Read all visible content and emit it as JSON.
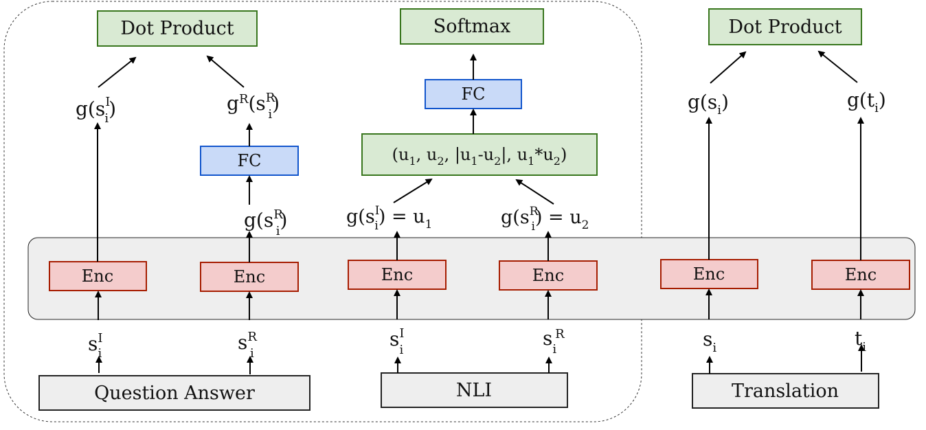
{
  "colors": {
    "green_fill": "#d9ead3",
    "green_stroke": "#38761d",
    "blue_fill": "#c9daf8",
    "blue_stroke": "#1155cc",
    "red_fill": "#f4cccc",
    "red_stroke": "#a61c00",
    "gray_fill": "#eeeeee",
    "gray_stroke": "#222222",
    "arrow": "#000000"
  },
  "boxes": {
    "dot_product_left": "Dot Product",
    "softmax": "Softmax",
    "dot_product_right": "Dot Product",
    "fc_qa": "FC",
    "fc_nli": "FC",
    "combine": {
      "t1": "(u",
      "s1": "1",
      "t2": ", u",
      "s2": "2",
      "t3": ", |u",
      "s3": "1",
      "t4": "-u",
      "s4": "2",
      "t5": "|, u",
      "s5": "1",
      "t6": "*u",
      "s6": "2",
      "t7": ")"
    },
    "enc": [
      "Enc",
      "Enc",
      "Enc",
      "Enc",
      "Enc",
      "Enc"
    ],
    "task_qa": "Question Answer",
    "task_nli": "NLI",
    "task_translation": "Translation"
  },
  "labels": {
    "g_si_I": {
      "g": "g(s",
      "sup": "I",
      "sub": "i",
      "close": ")"
    },
    "gR_si_R": {
      "g": "g",
      "gsup": "R",
      "open": "(s",
      "sup": "R",
      "sub": "i",
      "close": ")"
    },
    "g_si_R_mid": {
      "g": "g(s",
      "sup": "R",
      "sub": "i",
      "close": ")"
    },
    "u1": {
      "g": "g(s",
      "sup": "I",
      "sub": "i",
      "rest": ") = u",
      "usub": "1"
    },
    "u2": {
      "g": "g(s",
      "sup": "R",
      "sub": "i",
      "rest": ") = u",
      "usub": "2"
    },
    "g_si": {
      "g": "g(s",
      "sub": "i",
      "close": ")"
    },
    "g_ti": {
      "g": "g(t",
      "sub": "i",
      "close": ")"
    },
    "in_qa_1": {
      "base": "s",
      "sup": "I",
      "sub": "i"
    },
    "in_qa_2": {
      "base": "s",
      "sup": "R",
      "sub": "i"
    },
    "in_nli_1": {
      "base": "s",
      "sup": "I",
      "sub": "i"
    },
    "in_nli_2": {
      "base": "s",
      "sup": "R",
      "sub": "i"
    },
    "in_tr_1": {
      "base": "s",
      "sub": "i"
    },
    "in_tr_2": {
      "base": "t",
      "sub": "i"
    }
  }
}
